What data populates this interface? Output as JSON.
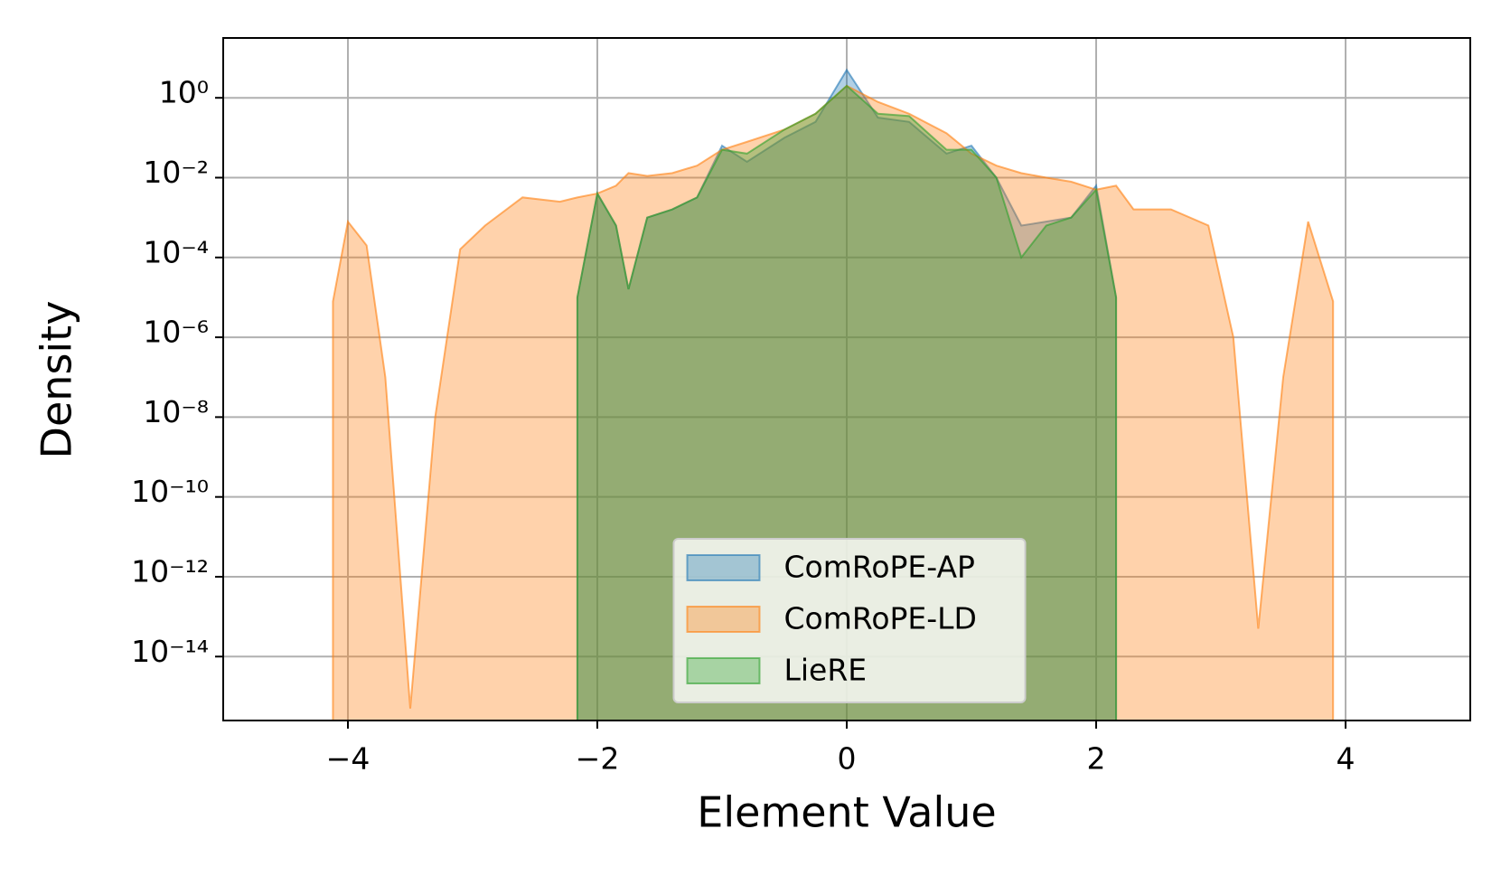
{
  "chart_data": {
    "type": "area",
    "xlabel": "Element Value",
    "ylabel": "Density",
    "yscale": "log",
    "grid": true,
    "legend": "lower center",
    "x": [
      -4.12,
      -4.0,
      -3.85,
      -3.7,
      -3.5,
      -3.3,
      -3.1,
      -2.9,
      -2.6,
      -2.3,
      -2.16,
      -2.0,
      -1.85,
      -1.75,
      -1.6,
      -1.4,
      -1.2,
      -1.0,
      -0.8,
      -0.5,
      -0.25,
      0,
      0.25,
      0.5,
      0.8,
      1.0,
      1.2,
      1.4,
      1.6,
      1.8,
      2.0,
      2.16,
      2.3,
      2.6,
      2.9,
      3.1,
      3.3,
      3.5,
      3.7,
      3.9
    ],
    "series": [
      {
        "name": "ComRoPE-AP",
        "color": "#1f77b4",
        "values": [
          null,
          null,
          null,
          null,
          null,
          null,
          null,
          null,
          null,
          null,
          1e-05,
          0.004,
          0.00063,
          1.6e-05,
          0.001,
          0.0016,
          0.0032,
          0.063,
          0.025,
          0.1,
          0.25,
          5,
          0.32,
          0.25,
          0.04,
          0.063,
          0.01,
          0.00063,
          0.00079,
          0.001,
          0.0063,
          1e-05,
          null,
          null,
          null,
          null,
          null,
          null,
          null,
          null
        ]
      },
      {
        "name": "ComRoPE-LD",
        "color": "#ff7f0e",
        "values": [
          7.9e-06,
          0.00079,
          0.0002,
          1e-07,
          5e-16,
          1e-08,
          0.00016,
          0.00063,
          0.0032,
          0.0025,
          0.0032,
          0.004,
          0.0063,
          0.013,
          0.011,
          0.013,
          0.02,
          0.05,
          0.079,
          0.16,
          0.4,
          2,
          0.79,
          0.4,
          0.13,
          0.04,
          0.02,
          0.013,
          0.01,
          0.0079,
          0.005,
          0.0063,
          0.0016,
          0.0016,
          0.00063,
          1e-06,
          5e-14,
          1e-07,
          0.00079,
          7.9e-06
        ]
      },
      {
        "name": "LieRE",
        "color": "#2ca02c",
        "values": [
          null,
          null,
          null,
          null,
          null,
          null,
          null,
          null,
          null,
          null,
          1e-05,
          0.004,
          0.00063,
          1.6e-05,
          0.001,
          0.0016,
          0.0032,
          0.05,
          0.04,
          0.16,
          0.4,
          2,
          0.4,
          0.35,
          0.05,
          0.05,
          0.01,
          0.0001,
          0.00063,
          0.001,
          0.005,
          1e-05,
          null,
          null,
          null,
          null,
          null,
          null,
          null,
          null
        ]
      }
    ],
    "xlim": [
      -5,
      5
    ],
    "xticks": [
      {
        "value": -4,
        "label": "−4"
      },
      {
        "value": -2,
        "label": "−2"
      },
      0,
      2,
      {
        "value": 4,
        "label": "4"
      }
    ],
    "ylim": [
      2.5e-16,
      31.6
    ],
    "yticks": [
      {
        "value": 1,
        "label": "10⁰"
      },
      {
        "value": 0.01,
        "label": "10⁻²"
      },
      {
        "value": 0.0001,
        "label": "10⁻⁴"
      },
      {
        "value": 1e-06,
        "label": "10⁻⁶"
      },
      {
        "value": 1e-08,
        "label": "10⁻⁸"
      },
      {
        "value": 1e-10,
        "label": "10⁻¹⁰"
      },
      {
        "value": 1e-12,
        "label": "10⁻¹²"
      },
      {
        "value": 1e-14,
        "label": "10⁻¹⁴"
      }
    ]
  }
}
